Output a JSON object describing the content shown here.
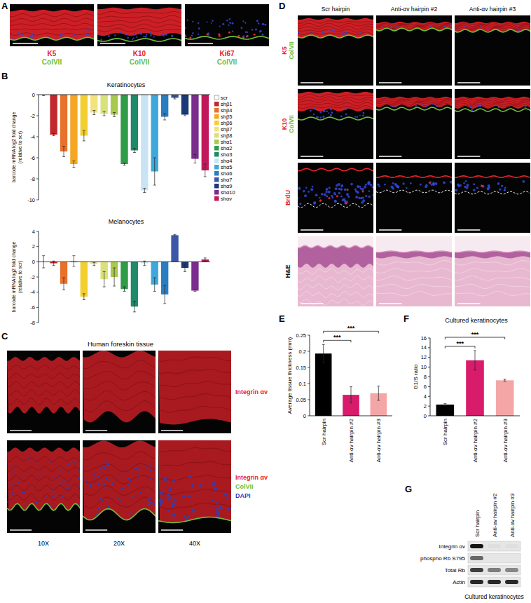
{
  "panels": {
    "A": {
      "letter": "A",
      "images": [
        {
          "stains": [
            {
              "text": "K5",
              "color": "#e8232a"
            },
            {
              "text": "ColVII",
              "color": "#6cbf3a"
            }
          ]
        },
        {
          "stains": [
            {
              "text": "K10",
              "color": "#e8232a"
            },
            {
              "text": "ColVII",
              "color": "#6cbf3a"
            }
          ]
        },
        {
          "stains": [
            {
              "text": "Ki67",
              "color": "#e8232a"
            },
            {
              "text": "ColVII",
              "color": "#6cbf3a"
            }
          ]
        }
      ]
    },
    "B": {
      "letter": "B"
    },
    "C": {
      "letter": "C",
      "title": "Human foreskin tissue",
      "rows": [
        {
          "stains": [
            {
              "text": "Integrin αv",
              "color": "#e8232a"
            }
          ]
        },
        {
          "stains": [
            {
              "text": "Integrin αv",
              "color": "#e8232a"
            },
            {
              "text": "ColVII",
              "color": "#6cbf3a"
            },
            {
              "text": "DAPI",
              "color": "#2b3fbf"
            }
          ]
        }
      ],
      "magnifications": [
        "10X",
        "20X",
        "40X"
      ]
    },
    "D": {
      "letter": "D",
      "columns": [
        "Scr hairpin",
        "Anti-αv hairpin #2",
        "Anti-αv hairpin #3"
      ],
      "rows": [
        {
          "stains": [
            {
              "text": "K5",
              "color": "#e8232a"
            },
            {
              "text": "ColVII",
              "color": "#6cbf3a"
            }
          ]
        },
        {
          "stains": [
            {
              "text": "K10",
              "color": "#e8232a"
            },
            {
              "text": "ColVII",
              "color": "#6cbf3a"
            }
          ]
        },
        {
          "stains": [
            {
              "text": "BrdU",
              "color": "#e8232a"
            }
          ]
        },
        {
          "stains": [
            {
              "text": "H&E",
              "color": "#111111"
            }
          ]
        }
      ]
    },
    "E": {
      "letter": "E"
    },
    "F": {
      "letter": "F"
    },
    "G": {
      "letter": "G",
      "columns": [
        "Scr hairpin",
        "Anti-αv hairpin #2",
        "Anti-αv hairpin #3"
      ],
      "rows": [
        {
          "label": "Integrin αv",
          "signal": [
            1,
            0.03,
            0.03
          ]
        },
        {
          "label": "phospho Rb S795",
          "signal": [
            0.6,
            0,
            0
          ]
        },
        {
          "label": "Total Rb",
          "signal": [
            0.8,
            0.5,
            0.45
          ]
        },
        {
          "label": "Actin",
          "signal": [
            0.9,
            0.9,
            0.9
          ]
        }
      ],
      "caption": "Cultured keratinocytes"
    }
  },
  "chart_data": [
    {
      "type": "bar",
      "title": "Keratinocytes",
      "ylabel": [
        "barcode mRNA log2 fold change",
        "(relative to scr)"
      ],
      "categories": [
        "scr",
        "shβ1",
        "shβ4",
        "shβ5",
        "shβ6",
        "shβ7",
        "shβ8",
        "shα1",
        "shα2",
        "shα3",
        "shα4",
        "shα5",
        "shα6",
        "shα7",
        "shα9",
        "shα10",
        "shαv"
      ],
      "values": [
        0,
        -3.8,
        -5.4,
        -6.6,
        -3.9,
        -1.7,
        -1.8,
        -1.9,
        -6.6,
        -5.3,
        -9.1,
        -7.3,
        -2.1,
        -0.3,
        -1.9,
        -6.1,
        -7.2
      ],
      "errors": [
        0.1,
        0.1,
        0.5,
        0.3,
        0.5,
        0.2,
        0.2,
        0.2,
        0.1,
        0.2,
        0.2,
        1.3,
        0.3,
        0.1,
        0.1,
        0.4,
        0.6
      ],
      "colors": [
        "#ffffff",
        "#c1272d",
        "#e8712b",
        "#f5a623",
        "#f2cf2f",
        "#f4e27c",
        "#d9e27a",
        "#a9c94e",
        "#2f9c48",
        "#1e8a6a",
        "#c8e4f4",
        "#3ea8dc",
        "#2a7dc0",
        "#3a58a5",
        "#1d3876",
        "#7b2d8e",
        "#c2185b"
      ],
      "ylim": [
        -10,
        0
      ],
      "yticks": [
        -10,
        -8,
        -6,
        -4,
        -2,
        0
      ],
      "legend": "right",
      "tick_labels": "y"
    },
    {
      "type": "bar",
      "title": "Melanocytes",
      "ylabel": [
        "barcode mRNA log2 fold change",
        "(relative to scr)"
      ],
      "categories": [
        null,
        null,
        null,
        null,
        null,
        null,
        null,
        null,
        null,
        null,
        null,
        null,
        null,
        null,
        null,
        null,
        null
      ],
      "values": [
        0,
        -0.2,
        -2.9,
        0.1,
        -4.6,
        -0.3,
        -2.3,
        -2.0,
        -3.6,
        -5.9,
        -0.2,
        -3.0,
        -4.3,
        3.5,
        -0.8,
        -3.8,
        0.3
      ],
      "errors": [
        0.8,
        0.3,
        0.8,
        0.7,
        0.4,
        0.2,
        1.0,
        1.2,
        0.3,
        0.7,
        0.3,
        0.9,
        1.2,
        0.1,
        0.5,
        0.1,
        0.2
      ],
      "colors": [
        "#ffffff",
        "#c1272d",
        "#e8712b",
        "#f5a623",
        "#f2cf2f",
        "#f4e27c",
        "#d9e27a",
        "#a9c94e",
        "#2f9c48",
        "#1e8a6a",
        "#c8e4f4",
        "#3ea8dc",
        "#2a7dc0",
        "#3a58a5",
        "#1d3876",
        "#7b2d8e",
        "#c2185b"
      ],
      "ylim": [
        -8,
        4
      ],
      "yticks": [
        -8,
        -6,
        -4,
        -2,
        0,
        2,
        4
      ],
      "tick_labels": "y"
    },
    {
      "type": "bar",
      "ylabel": "Average tissue thickness (mm)",
      "categories": [
        "Scr hairpin",
        "Anti-αv hairpin #2",
        "Anti-αv hairpin #3"
      ],
      "values": [
        0.193,
        0.065,
        0.07
      ],
      "errors": [
        0.028,
        0.025,
        0.022
      ],
      "colors": [
        "#000000",
        "#d81b6a",
        "#f4a6a6"
      ],
      "ylim": [
        0,
        0.25
      ],
      "yticks": [
        0,
        0.05,
        0.1,
        0.15,
        0.2,
        0.25
      ],
      "annotations": [
        {
          "text": "***",
          "from": 0,
          "to": 1
        },
        {
          "text": "***",
          "from": 0,
          "to": 2
        }
      ]
    },
    {
      "type": "bar",
      "title": "Cultured keratinocytes",
      "ylabel": "G1/S ratio",
      "categories": [
        "Scr hairpin",
        "Anti-αv hairpin #2",
        "Anti-αv hairpin #3"
      ],
      "values": [
        2.3,
        11.4,
        7.3
      ],
      "errors": [
        0.2,
        2.0,
        0.2
      ],
      "colors": [
        "#000000",
        "#d81b6a",
        "#f4a6a6"
      ],
      "ylim": [
        0,
        16
      ],
      "yticks": [
        0,
        2,
        4,
        6,
        8,
        10,
        12,
        14,
        16
      ],
      "annotations": [
        {
          "text": "***",
          "from": 0,
          "to": 1
        },
        {
          "text": "***",
          "from": 0,
          "to": 2
        }
      ]
    }
  ]
}
